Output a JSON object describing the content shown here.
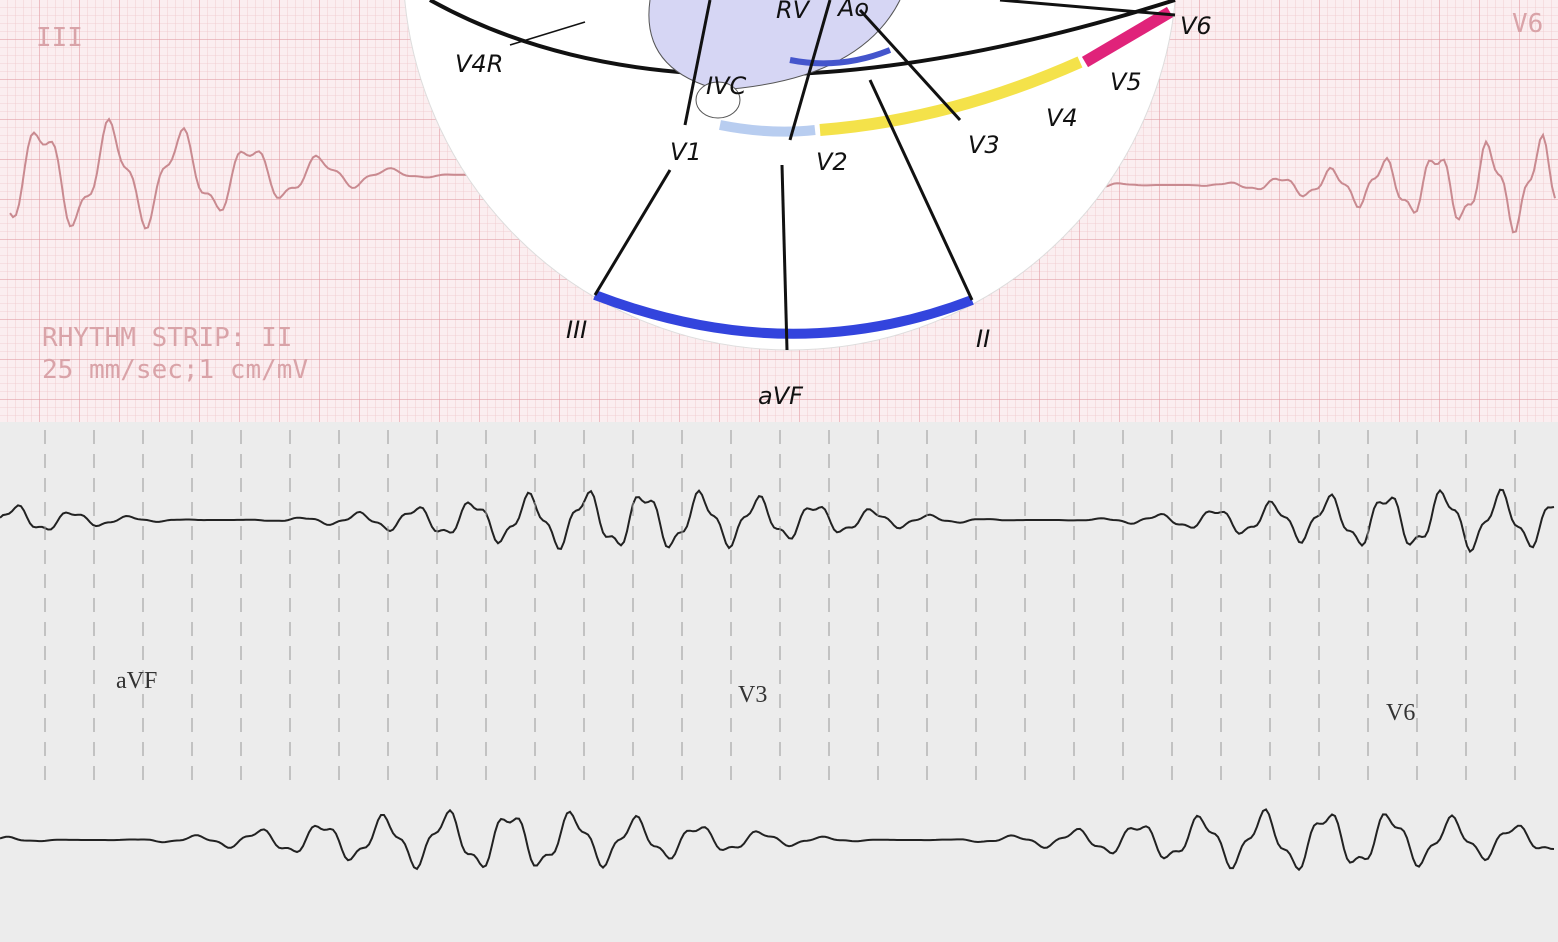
{
  "top_strip": {
    "lead_labels": [
      "III",
      "V6"
    ],
    "rhythm_label": "RHYTHM STRIP: II",
    "calibration": "25 mm/sec;1 cm/mV"
  },
  "diagram": {
    "labels": [
      "V4R",
      "RV",
      "Ao",
      "IVC",
      "V1",
      "V2",
      "V3",
      "V4",
      "V5",
      "V6",
      "III",
      "II",
      "aVF"
    ]
  },
  "bottom_strip": {
    "lead_labels": [
      "aVF",
      "V3",
      "V6"
    ]
  }
}
